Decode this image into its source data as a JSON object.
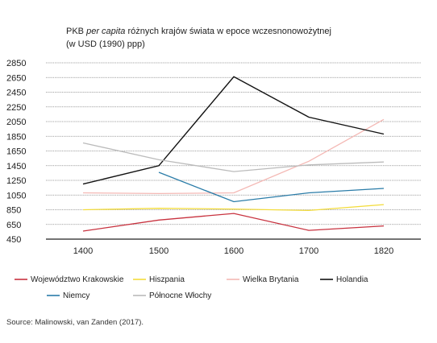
{
  "chart_data": {
    "type": "line",
    "title_line1_prefix": "PKB ",
    "title_line1_italic": "per capita",
    "title_line1_suffix": " różnych krajów świata w epoce wczesnonowożytnej",
    "title_line2": "(w USD (1990) ppp)",
    "x": [
      "1400",
      "1500",
      "1600",
      "1700",
      "1820"
    ],
    "ylim": [
      450,
      2850
    ],
    "yticks": [
      450,
      650,
      850,
      1050,
      1250,
      1450,
      1650,
      1850,
      2050,
      2250,
      2450,
      2650,
      2850
    ],
    "series": [
      {
        "name": "Województwo Krakowskie",
        "color": "#c8323f",
        "values": [
          560,
          710,
          800,
          570,
          630
        ]
      },
      {
        "name": "Hiszpania",
        "color": "#f3dc3c",
        "values": [
          850,
          870,
          860,
          840,
          920
        ]
      },
      {
        "name": "Wielka Brytania",
        "color": "#f4b8b4",
        "values": [
          1080,
          1070,
          1080,
          1510,
          2080
        ]
      },
      {
        "name": "Holandia",
        "color": "#111111",
        "values": [
          1200,
          1450,
          2660,
          2110,
          1880
        ]
      },
      {
        "name": "Niemcy",
        "color": "#2a7ca8",
        "values": [
          null,
          1360,
          960,
          1080,
          1140
        ]
      },
      {
        "name": "Północne Włochy",
        "color": "#bbbbbb",
        "values": [
          1760,
          1530,
          1370,
          1460,
          1500
        ]
      }
    ]
  },
  "source": "Source: Malinowski, van Zanden (2017)."
}
